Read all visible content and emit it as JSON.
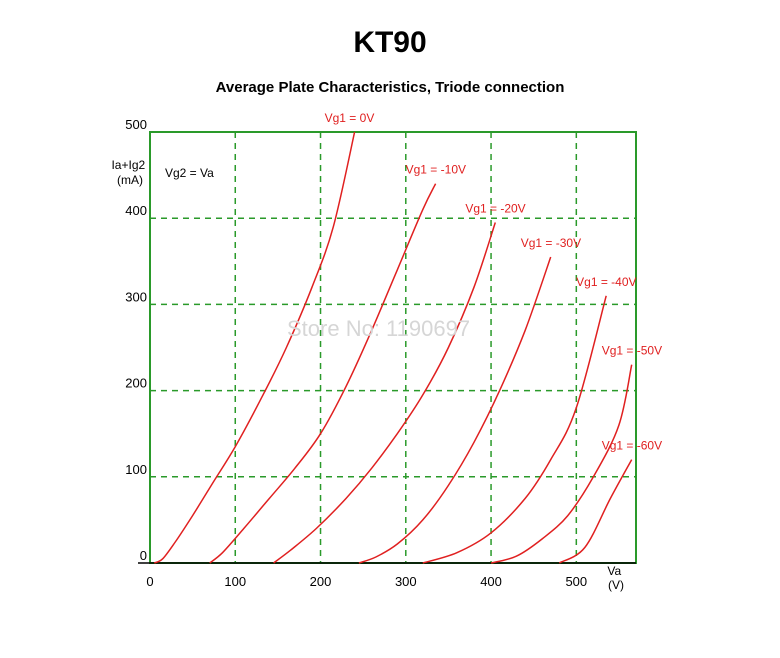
{
  "header": {
    "title": "KT90",
    "subtitle": "Average Plate Characteristics, Triode connection"
  },
  "annotations": {
    "vg2": "Vg2 = Va",
    "watermark": "Store No: 1190697"
  },
  "colors": {
    "grid": "#2a9a2a",
    "frame": "#2a9a2a",
    "curves": "#e02020"
  },
  "chart_data": {
    "type": "line",
    "title": "Average Plate Characteristics, Triode connection",
    "xlabel": "Va\n(V)",
    "ylabel": "Ia+Ig2\n(mA)",
    "xlim": [
      0,
      570
    ],
    "ylim": [
      0,
      500
    ],
    "xticks": [
      0,
      100,
      200,
      300,
      400,
      500
    ],
    "yticks": [
      0,
      100,
      200,
      300,
      400,
      500
    ],
    "grid": true,
    "series": [
      {
        "name": "Vg1 = 0V",
        "x": [
          5,
          15,
          30,
          50,
          75,
          100,
          130,
          160,
          190,
          215,
          240
        ],
        "y": [
          0,
          5,
          25,
          55,
          95,
          135,
          190,
          250,
          320,
          390,
          500
        ]
      },
      {
        "name": "Vg1 = -10V",
        "x": [
          70,
          85,
          110,
          140,
          170,
          200,
          230,
          260,
          290,
          320,
          335
        ],
        "y": [
          0,
          12,
          40,
          75,
          110,
          150,
          205,
          270,
          340,
          410,
          440
        ]
      },
      {
        "name": "Vg1 = -20V",
        "x": [
          145,
          165,
          195,
          230,
          260,
          290,
          320,
          350,
          380,
          405
        ],
        "y": [
          0,
          15,
          40,
          75,
          110,
          150,
          195,
          250,
          320,
          395
        ]
      },
      {
        "name": "Vg1 = -30V",
        "x": [
          245,
          265,
          290,
          320,
          350,
          380,
          410,
          440,
          470
        ],
        "y": [
          0,
          7,
          22,
          50,
          90,
          140,
          200,
          270,
          355
        ]
      },
      {
        "name": "Vg1 = -40V",
        "x": [
          320,
          360,
          400,
          440,
          470,
          500,
          535
        ],
        "y": [
          0,
          12,
          35,
          75,
          120,
          180,
          310
        ]
      },
      {
        "name": "Vg1 = -50V",
        "x": [
          400,
          430,
          460,
          490,
          520,
          550,
          565
        ],
        "y": [
          0,
          8,
          28,
          55,
          100,
          160,
          230
        ]
      },
      {
        "name": "Vg1 = -60V",
        "x": [
          480,
          510,
          540,
          565
        ],
        "y": [
          0,
          18,
          75,
          120
        ]
      }
    ]
  }
}
